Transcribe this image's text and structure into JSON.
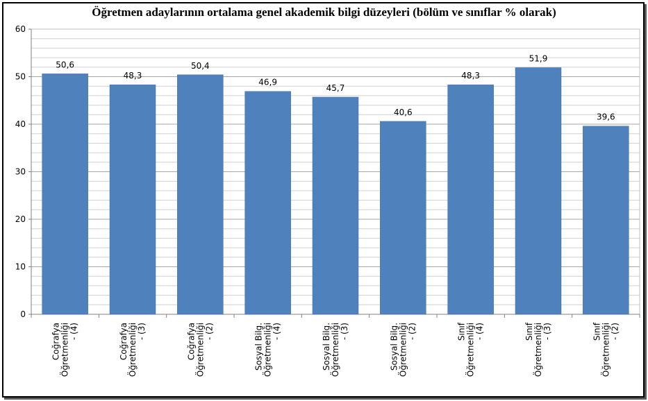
{
  "chart_data": {
    "type": "bar",
    "title": "Öğretmen adaylarının ortalama genel akademik bilgi düzeyleri (bölüm ve sınıflar % olarak)",
    "xlabel": "",
    "ylabel": "",
    "ylim": [
      0,
      60
    ],
    "yticks": [
      0,
      10,
      20,
      30,
      40,
      50,
      60
    ],
    "grid": true,
    "legend": "none",
    "bar_color": "#4f81bd",
    "categories": [
      [
        "Coğrafya",
        "Öğretmenliği",
        "- (4)"
      ],
      [
        "Coğrafya",
        "Öğretmenliği",
        "- (3)"
      ],
      [
        "Coğrafya",
        "Öğretmenliği",
        "- (2)"
      ],
      [
        "Sosyal Bilg.",
        "Öğretmenliği",
        "- (4)"
      ],
      [
        "Sosyal Bilg.",
        "Öğretmenliği",
        "- (3)"
      ],
      [
        "Sosyal Bilg.",
        "Öğretmenliği",
        "- (2)"
      ],
      [
        "Sınıf",
        "Öğretmenliği",
        "- (4)"
      ],
      [
        "Sınıf",
        "Öğretmenliği",
        "- (3)"
      ],
      [
        "Sınıf",
        "Öğretmenliği",
        "- (2)"
      ]
    ],
    "values": [
      50.6,
      48.3,
      50.4,
      46.9,
      45.7,
      40.6,
      48.3,
      51.9,
      39.6
    ],
    "value_labels": [
      "50,6",
      "48,3",
      "50,4",
      "46,9",
      "45,7",
      "40,6",
      "48,3",
      "51,9",
      "39,6"
    ]
  }
}
